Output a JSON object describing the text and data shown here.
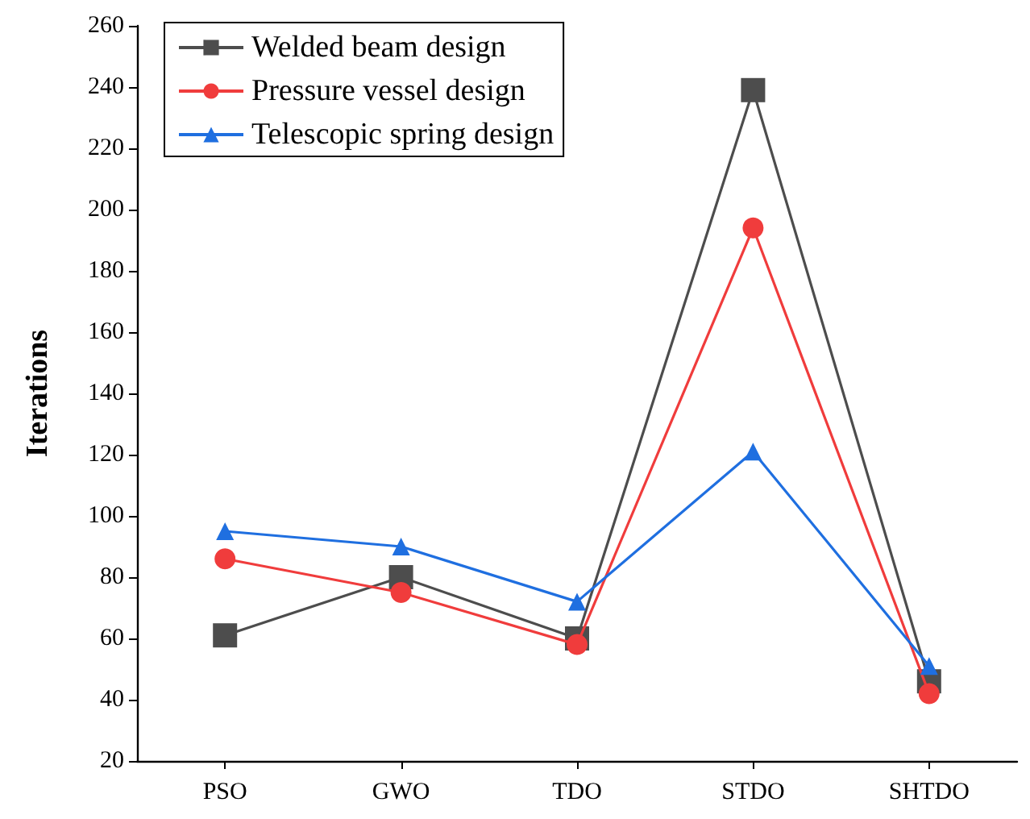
{
  "chart_data": {
    "type": "line",
    "ylabel": "Iterations",
    "categories": [
      "PSO",
      "GWO",
      "TDO",
      "STDO",
      "SHTDO"
    ],
    "series": [
      {
        "name": "Welded beam design",
        "color": "#4d4d4d",
        "marker": "square",
        "values": [
          61,
          80,
          60,
          239,
          46
        ]
      },
      {
        "name": "Pressure vessel design",
        "color": "#f03c3c",
        "marker": "circle",
        "values": [
          86,
          75,
          58,
          194,
          42
        ]
      },
      {
        "name": "Telescopic spring design",
        "color": "#1f6fe0",
        "marker": "triangle",
        "values": [
          95,
          90,
          72,
          121,
          51
        ]
      }
    ],
    "ylim": [
      20,
      260
    ],
    "yticks": [
      20,
      40,
      60,
      80,
      100,
      120,
      140,
      160,
      180,
      200,
      220,
      240,
      260
    ],
    "grid": false,
    "legend": "top left",
    "line_style": "solid"
  }
}
